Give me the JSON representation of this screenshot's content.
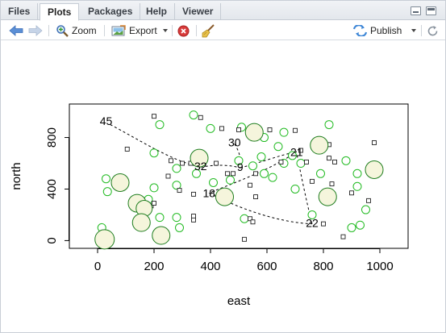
{
  "tabs": [
    {
      "label": "Files",
      "active": false
    },
    {
      "label": "Plots",
      "active": true
    },
    {
      "label": "Packages",
      "active": false
    },
    {
      "label": "Help",
      "active": false
    },
    {
      "label": "Viewer",
      "active": false
    }
  ],
  "toolbar": {
    "zoom_label": "Zoom",
    "export_label": "Export",
    "publish_label": "Publish"
  },
  "chart_data": {
    "type": "scatter",
    "xlabel": "east",
    "ylabel": "north",
    "xlim": [
      -100,
      1100
    ],
    "ylim": [
      -60,
      1060
    ],
    "xticks": [
      0,
      200,
      400,
      600,
      800,
      1000
    ],
    "yticks": [
      0,
      400,
      800
    ],
    "xtick_labels": [
      "0",
      "200",
      "400",
      "600",
      "800",
      "1000"
    ],
    "ytick_labels": [
      "0",
      "400",
      "800"
    ],
    "grid": false,
    "colors": {
      "circle_stroke": "#22bb22",
      "big_fill": "#f5f5dc",
      "small_fill": "#ffffff",
      "square": "#222222"
    },
    "squares": [
      [
        200,
        965
      ],
      [
        365,
        955
      ],
      [
        440,
        870
      ],
      [
        500,
        860
      ],
      [
        540,
        830
      ],
      [
        610,
        860
      ],
      [
        700,
        855
      ],
      [
        720,
        700
      ],
      [
        820,
        745
      ],
      [
        980,
        760
      ],
      [
        105,
        710
      ],
      [
        260,
        620
      ],
      [
        300,
        600
      ],
      [
        330,
        600
      ],
      [
        420,
        600
      ],
      [
        460,
        520
      ],
      [
        480,
        520
      ],
      [
        560,
        520
      ],
      [
        650,
        610
      ],
      [
        740,
        610
      ],
      [
        820,
        640
      ],
      [
        840,
        610
      ],
      [
        250,
        500
      ],
      [
        290,
        390
      ],
      [
        340,
        360
      ],
      [
        190,
        270
      ],
      [
        200,
        290
      ],
      [
        540,
        430
      ],
      [
        560,
        340
      ],
      [
        760,
        460
      ],
      [
        830,
        440
      ],
      [
        900,
        370
      ],
      [
        960,
        310
      ],
      [
        340,
        190
      ],
      [
        340,
        160
      ],
      [
        540,
        170
      ],
      [
        550,
        145
      ],
      [
        520,
        10
      ],
      [
        870,
        30
      ],
      [
        800,
        130
      ]
    ],
    "circles_small": [
      [
        30,
        480
      ],
      [
        35,
        380
      ],
      [
        15,
        100
      ],
      [
        200,
        680
      ],
      [
        220,
        900
      ],
      [
        340,
        975
      ],
      [
        400,
        870
      ],
      [
        510,
        880
      ],
      [
        590,
        800
      ],
      [
        640,
        730
      ],
      [
        660,
        840
      ],
      [
        820,
        900
      ],
      [
        280,
        560
      ],
      [
        280,
        430
      ],
      [
        350,
        520
      ],
      [
        410,
        450
      ],
      [
        470,
        470
      ],
      [
        500,
        620
      ],
      [
        550,
        580
      ],
      [
        590,
        520
      ],
      [
        690,
        660
      ],
      [
        700,
        400
      ],
      [
        760,
        200
      ],
      [
        790,
        520
      ],
      [
        920,
        520
      ],
      [
        920,
        420
      ],
      [
        950,
        240
      ],
      [
        930,
        120
      ],
      [
        880,
        620
      ],
      [
        200,
        410
      ],
      [
        180,
        320
      ],
      [
        220,
        180
      ],
      [
        280,
        180
      ],
      [
        290,
        100
      ],
      [
        130,
        270
      ],
      [
        90,
        460
      ],
      [
        520,
        170
      ],
      [
        620,
        490
      ],
      [
        720,
        600
      ],
      [
        580,
        650
      ],
      [
        660,
        600
      ],
      [
        900,
        100
      ]
    ],
    "circles_big": [
      [
        25,
        10,
        12
      ],
      [
        80,
        450,
        11
      ],
      [
        140,
        290,
        11
      ],
      [
        165,
        250,
        10
      ],
      [
        155,
        140,
        11
      ],
      [
        225,
        40,
        11
      ],
      [
        360,
        640,
        11
      ],
      [
        450,
        340,
        11
      ],
      [
        555,
        840,
        11
      ],
      [
        785,
        740,
        11
      ],
      [
        815,
        340,
        11
      ],
      [
        980,
        550,
        11
      ]
    ],
    "labels": [
      {
        "text": "45",
        "x": 30,
        "y": 920
      },
      {
        "text": "32",
        "x": 365,
        "y": 570
      },
      {
        "text": "30",
        "x": 485,
        "y": 755
      },
      {
        "text": "9",
        "x": 505,
        "y": 565
      },
      {
        "text": "21",
        "x": 705,
        "y": 680
      },
      {
        "text": "18",
        "x": 395,
        "y": 360
      },
      {
        "text": "22",
        "x": 760,
        "y": 130
      }
    ],
    "curves": [
      [
        [
          45,
          900
        ],
        [
          150,
          780
        ],
        [
          260,
          620
        ],
        [
          365,
          570
        ]
      ],
      [
        [
          365,
          570
        ],
        [
          420,
          590
        ],
        [
          460,
          590
        ],
        [
          505,
          565
        ]
      ],
      [
        [
          485,
          750
        ],
        [
          500,
          700
        ],
        [
          510,
          640
        ],
        [
          505,
          565
        ]
      ],
      [
        [
          505,
          565
        ],
        [
          570,
          600
        ],
        [
          640,
          660
        ],
        [
          705,
          690
        ]
      ],
      [
        [
          705,
          690
        ],
        [
          620,
          560
        ],
        [
          510,
          470
        ],
        [
          395,
          370
        ]
      ],
      [
        [
          395,
          370
        ],
        [
          500,
          250
        ],
        [
          640,
          140
        ],
        [
          760,
          130
        ]
      ],
      [
        [
          760,
          130
        ],
        [
          740,
          300
        ],
        [
          720,
          520
        ],
        [
          705,
          680
        ]
      ]
    ]
  }
}
